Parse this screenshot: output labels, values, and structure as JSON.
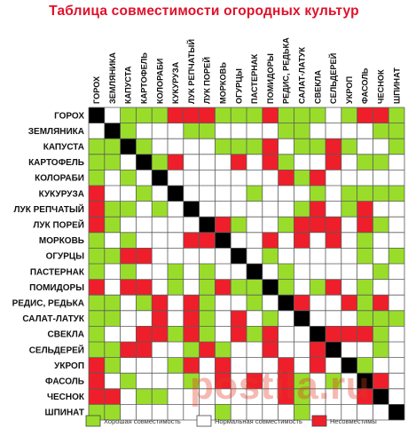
{
  "colors": {
    "good": "#99dd2a",
    "neutral": "#ffffff",
    "bad": "#ee1f2a",
    "self": "#000000",
    "grid": "#5a5a5a",
    "title": "#e0102a"
  },
  "chart_data": {
    "type": "heatmap",
    "title": "Таблица совместимости огородных культур",
    "crops": [
      "ГОРОХ",
      "ЗЕМЛЯНИКА",
      "КАПУСТА",
      "КАРТОФЕЛЬ",
      "КОЛОРАБИ",
      "КУКУРУЗА",
      "ЛУК РЕПЧАТЫЙ",
      "ЛУК ПОРЕЙ",
      "МОРКОВЬ",
      "ОГУРЦЫ",
      "ПАСТЕРНАК",
      "ПОМИДОРЫ",
      "РЕДИС, РЕДЬКА",
      "САЛАТ-ЛАТУК",
      "СВЕКЛА",
      "СЕЛЬДЕРЕЙ",
      "УКРОП",
      "ФАСОЛЬ",
      "ЧЕСНОК",
      "ШПИНАТ"
    ],
    "value_codes": {
      "g": "Хорошая совместимость",
      "n": "Нормальная совместимость",
      "b": "Несовместимы",
      "x": "—"
    },
    "matrix": [
      "xngggbbbgggbgggngbbg",
      "nxgnnnggnnnnggnnnngg",
      "ggxgnnnngggbnggbgnng",
      "ggnxgbnnnbnbgnnbnggn",
      "gngnxnnnnnnnbgbnnnnn",
      "bnngnxnnnngnnngngggg",
      "bggngnxnnnnnngbngbnn",
      "bgnnnnnxbgnngbbbnbgn",
      "gngnnnbbxnnbnbnbngnn",
      "ggbbnnnnnxngnnnnngng",
      "gngnngngnnxngnnnnngn",
      "bnbbngngbggxgngbngnn",
      "ggngbnbgnngnxbnnbgbn",
      "ggnnbnbgnbngnxnnnggg",
      "gnnbbgbgnbgbnnxbbbgn",
      "ggbbnngbgnnbnnbxnngn",
      "bgnnngbnbnnnbnbnxgnn",
      "bngnnngnbnbnbgngnxbn",
      "bbnggnnnnnnnbgnnnbxn",
      "ggnnnnnngnnnngnnnnnx"
    ],
    "legend": [
      {
        "code": "g",
        "label": "Хорошая совместимость"
      },
      {
        "code": "n",
        "label": "Нормальная совместимость"
      },
      {
        "code": "b",
        "label": "Несовместимы"
      }
    ]
  },
  "watermark": "postila.ru"
}
